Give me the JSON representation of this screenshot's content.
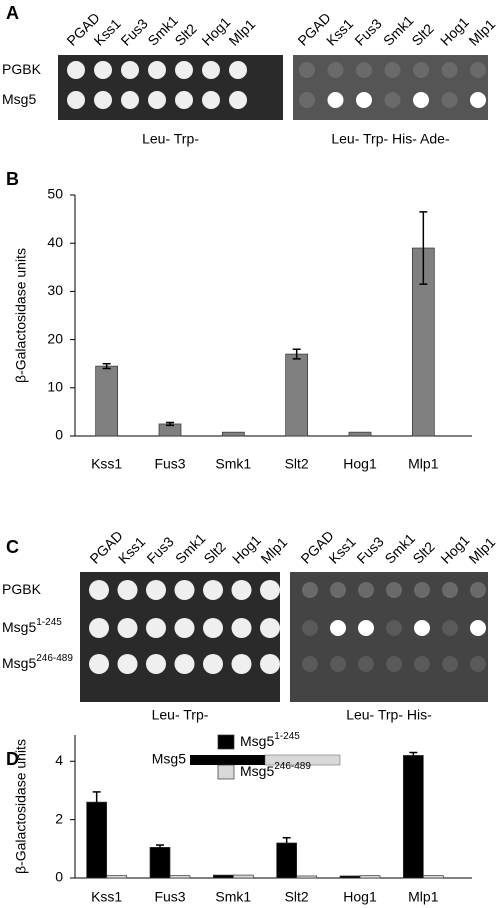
{
  "panel_a": {
    "label": "A",
    "columns": [
      "PGAD",
      "Kss1",
      "Fus3",
      "Smk1",
      "Slt2",
      "Hog1",
      "Mlp1"
    ],
    "rows": [
      {
        "base": "PGBK"
      },
      {
        "base": "Msg5"
      }
    ],
    "conditions": [
      "Leu- Trp-",
      "Leu- Trp- His- Ade-"
    ]
  },
  "panel_c": {
    "label": "C",
    "columns": [
      "PGAD",
      "Kss1",
      "Fus3",
      "Smk1",
      "Slt2",
      "Hog1",
      "Mlp1"
    ],
    "rows": [
      {
        "base": "PGBK"
      },
      {
        "base": "Msg5",
        "sup": "1-245"
      },
      {
        "base": "Msg5",
        "sup": "246-489"
      }
    ],
    "conditions": [
      "Leu- Trp-",
      "Leu- Trp- His-"
    ]
  },
  "diagram_d": {
    "label": "Msg5"
  },
  "chart_data": [
    {
      "type": "bar",
      "label": "B",
      "y_label": "β-Galactosidase units",
      "categories": [
        "Kss1",
        "Fus3",
        "Smk1",
        "Slt2",
        "Hog1",
        "Mlp1"
      ],
      "series": [
        {
          "color": "#808080",
          "values": [
            14.5,
            2.5,
            0.8,
            17,
            0.8,
            39
          ],
          "errors": [
            0.5,
            0.3,
            0,
            1,
            0,
            7.5
          ]
        }
      ],
      "ylim": [
        0,
        50
      ],
      "yticks": [
        0,
        10,
        20,
        30,
        40,
        50
      ]
    },
    {
      "type": "bar",
      "label": "D",
      "y_label": "β-Galactosidase units",
      "categories": [
        "Kss1",
        "Fus3",
        "Smk1",
        "Slt2",
        "Hog1",
        "Mlp1"
      ],
      "series": [
        {
          "name": "Msg5",
          "name_sup": "1-245",
          "color": "#000000",
          "values": [
            2.6,
            1.05,
            0.1,
            1.2,
            0.07,
            4.2
          ],
          "errors": [
            0.35,
            0.08,
            0,
            0.18,
            0,
            0.1
          ]
        },
        {
          "name": "Msg5",
          "name_sup": "246-489",
          "color": "#d9d9d9",
          "values": [
            0.08,
            0.08,
            0.1,
            0.07,
            0.08,
            0.08
          ],
          "errors": [
            0,
            0,
            0,
            0,
            0,
            0
          ]
        }
      ],
      "ylim": [
        0,
        4.9
      ],
      "yticks": [
        0,
        2,
        4
      ],
      "legend": "top"
    }
  ]
}
